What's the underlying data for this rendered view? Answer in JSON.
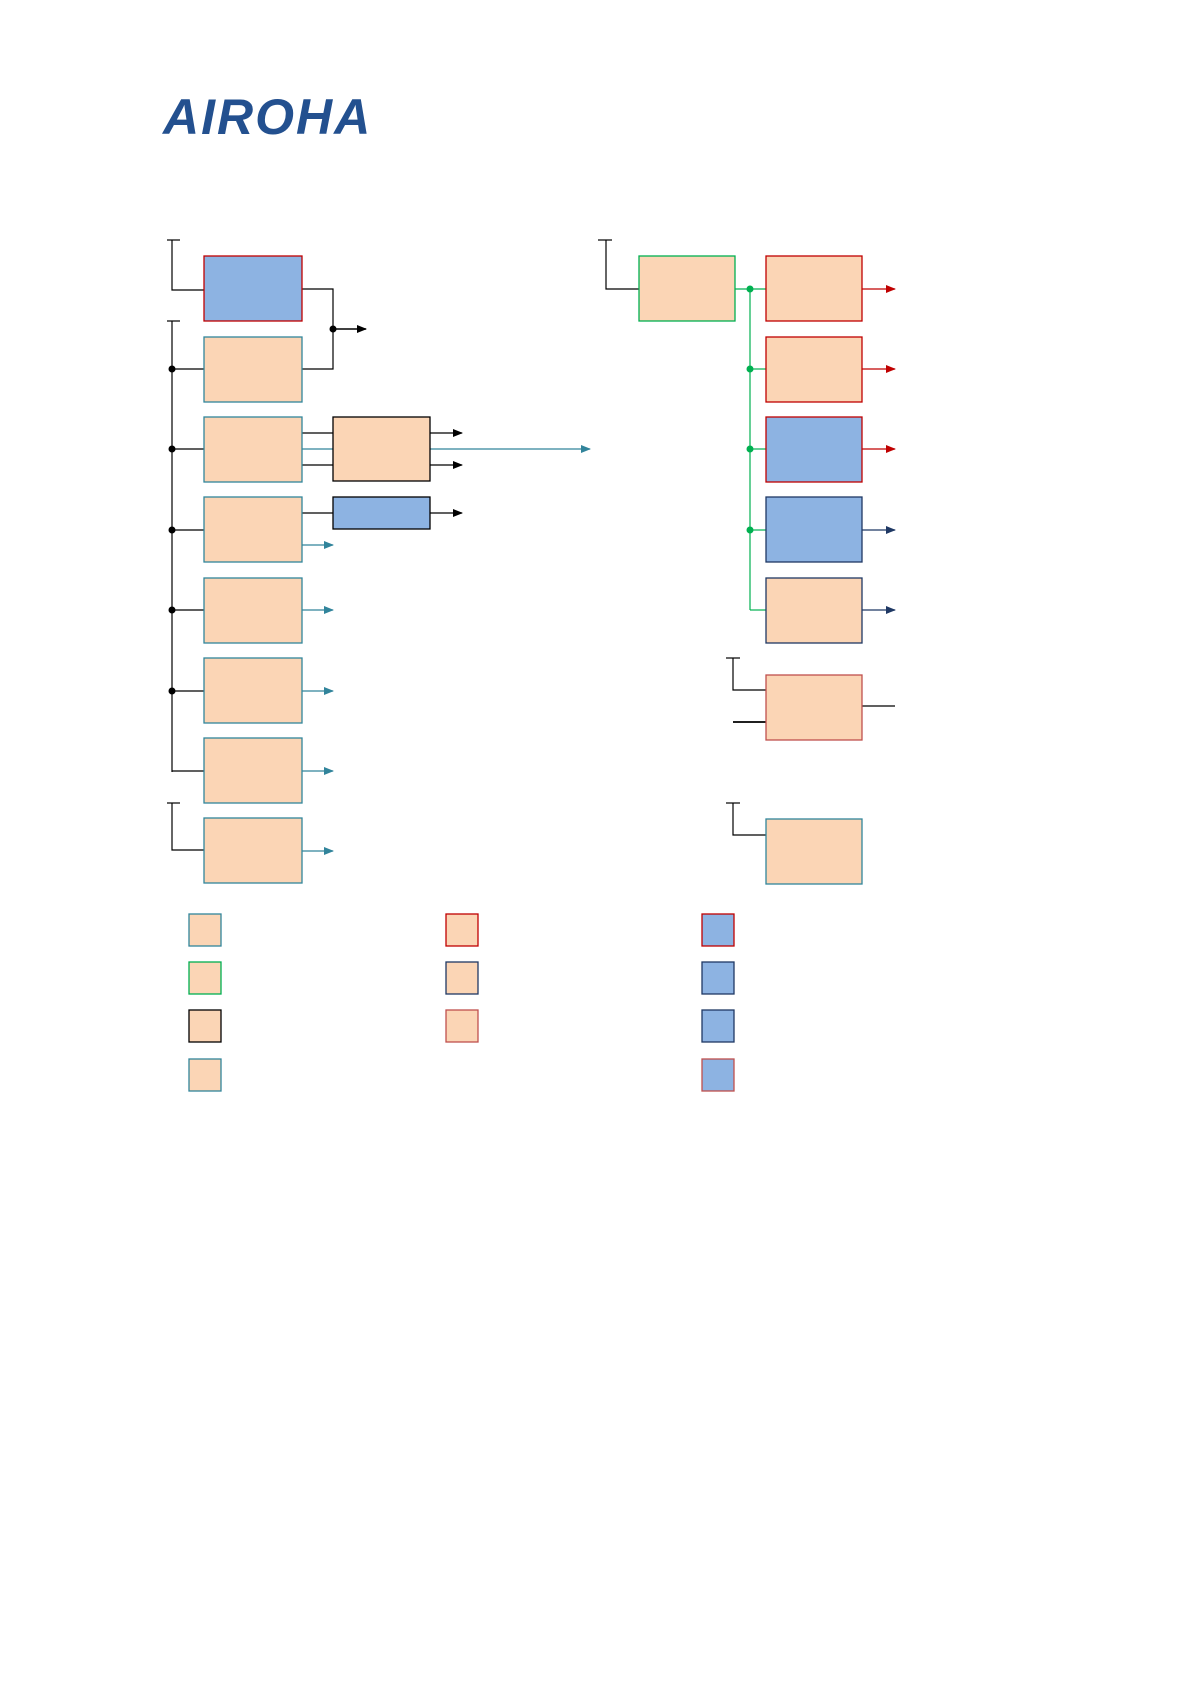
{
  "header": {
    "logo_text": "AIROHA",
    "logo_color": "#23508f"
  },
  "colors": {
    "box_fill_peach": "#fbd5b5",
    "box_fill_blue": "#8db3e2",
    "border_teal": "#31859c",
    "border_red": "#c00000",
    "border_green": "#00b050",
    "border_black": "#000000",
    "border_navy": "#1f3864",
    "border_brown": "#c0504d",
    "line_black": "#000000",
    "arrow_teal": "#31849b",
    "arrow_red": "#c00000",
    "arrow_navy": "#1f3864",
    "bus_green": "#00b050"
  },
  "diagram": {
    "left_column_boxes": [
      {
        "fill": "blue",
        "border": "red"
      },
      {
        "fill": "peach",
        "border": "teal"
      },
      {
        "fill": "peach",
        "border": "teal"
      },
      {
        "fill": "peach",
        "border": "teal"
      },
      {
        "fill": "peach",
        "border": "teal"
      },
      {
        "fill": "peach",
        "border": "teal"
      },
      {
        "fill": "peach",
        "border": "teal"
      },
      {
        "fill": "peach",
        "border": "teal"
      }
    ],
    "middle_boxes": [
      {
        "fill": "peach",
        "border": "black"
      },
      {
        "fill": "blue",
        "border": "black"
      }
    ],
    "right_source_box": {
      "fill": "peach",
      "border": "green"
    },
    "right_column_boxes": [
      {
        "fill": "peach",
        "border": "red",
        "arrow": "red"
      },
      {
        "fill": "peach",
        "border": "red",
        "arrow": "red"
      },
      {
        "fill": "blue",
        "border": "red",
        "arrow": "red"
      },
      {
        "fill": "blue",
        "border": "navy",
        "arrow": "navy"
      },
      {
        "fill": "peach",
        "border": "navy",
        "arrow": "navy"
      },
      {
        "fill": "peach",
        "border": "brown",
        "arrow": "none"
      },
      {
        "fill": "peach",
        "border": "teal",
        "arrow": "none"
      }
    ]
  },
  "legend": [
    {
      "fill": "peach",
      "border": "teal"
    },
    {
      "fill": "peach",
      "border": "red"
    },
    {
      "fill": "blue",
      "border": "red"
    },
    {
      "fill": "peach",
      "border": "green"
    },
    {
      "fill": "peach",
      "border": "navy"
    },
    {
      "fill": "blue",
      "border": "navy"
    },
    {
      "fill": "peach",
      "border": "black"
    },
    {
      "fill": "peach",
      "border": "brown"
    },
    {
      "fill": "blue",
      "border": "navy"
    },
    {
      "fill": "peach",
      "border": "teal"
    },
    {
      "fill": "blue",
      "border": "brown"
    }
  ]
}
